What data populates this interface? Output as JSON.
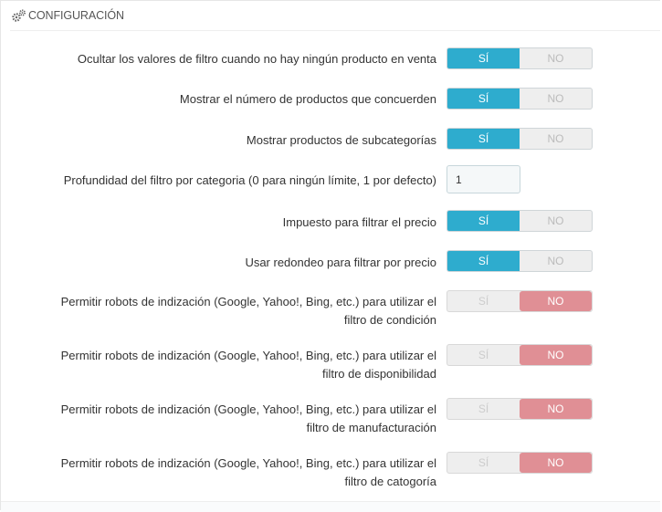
{
  "panel": {
    "title": "CONFIGURACIÓN",
    "icon": "cogs-icon"
  },
  "switch_labels": {
    "yes": "SÍ",
    "no": "NO"
  },
  "colors": {
    "yes_active": "#2eacce",
    "no_active": "#e08f95"
  },
  "settings": [
    {
      "label": "Ocultar los valores de filtro cuando no hay ningún producto en venta",
      "type": "switch",
      "value": "yes"
    },
    {
      "label": "Mostrar el número de productos que concuerden",
      "type": "switch",
      "value": "yes"
    },
    {
      "label": "Mostrar productos de subcategorías",
      "type": "switch",
      "value": "yes"
    },
    {
      "label": "Profundidad del filtro por categoria (0 para ningún límite, 1 por defecto)",
      "type": "input",
      "value": "1"
    },
    {
      "label": "Impuesto para filtrar el precio",
      "type": "switch",
      "value": "yes"
    },
    {
      "label": "Usar redondeo para filtrar por precio",
      "type": "switch",
      "value": "yes"
    },
    {
      "label_line1": "Permitir robots de indización (Google, Yahoo!, Bing, etc.) para utilizar el",
      "label_line2": "filtro de condición",
      "type": "switch",
      "value": "no"
    },
    {
      "label_line1": "Permitir robots de indización (Google, Yahoo!, Bing, etc.) para utilizar el",
      "label_line2": "filtro de disponibilidad",
      "type": "switch",
      "value": "no"
    },
    {
      "label_line1": "Permitir robots de indización (Google, Yahoo!, Bing, etc.) para utilizar el",
      "label_line2": "filtro de manufacturación",
      "type": "switch",
      "value": "no"
    },
    {
      "label_line1": "Permitir robots de indización (Google, Yahoo!, Bing, etc.) para utilizar el",
      "label_line2": "filtro de catogoría",
      "type": "switch",
      "value": "no"
    }
  ]
}
